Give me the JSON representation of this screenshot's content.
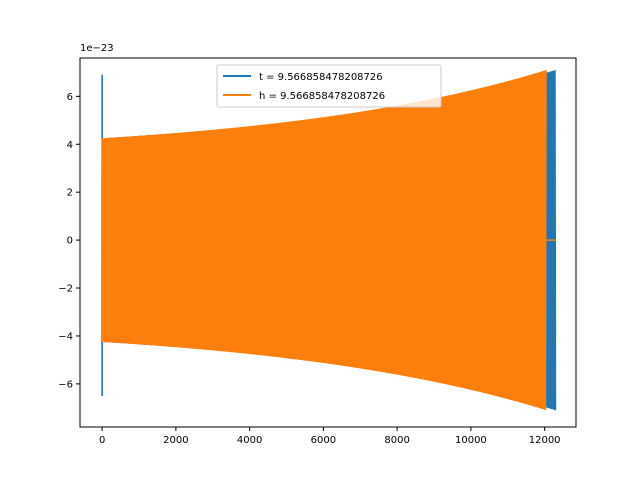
{
  "chart_data": {
    "type": "line",
    "title": "",
    "xlabel": "",
    "ylabel": "",
    "y_offset_text": "1e−23",
    "xlim": [
      -600,
      12850
    ],
    "ylim": [
      -7.8,
      7.6
    ],
    "xticks": [
      0,
      2000,
      4000,
      6000,
      8000,
      10000,
      12000
    ],
    "xtick_labels": [
      "0",
      "2000",
      "4000",
      "6000",
      "8000",
      "10000",
      "12000"
    ],
    "yticks": [
      -6,
      -4,
      -2,
      0,
      2,
      4,
      6
    ],
    "ytick_labels": [
      "−6",
      "−4",
      "−2",
      "0",
      "2",
      "4",
      "6"
    ],
    "grid": false,
    "legend_position": "top-center",
    "series": [
      {
        "name": "t = 9.566858478208726",
        "color": "#1f77b4",
        "spike": {
          "x": 0,
          "ymax": 6.9,
          "ymin": -6.5
        },
        "envelope_start": 4.25,
        "envelope_end": 7.1,
        "signal_end_x": 12300
      },
      {
        "name": "h = 9.566858478208726",
        "color": "#ff7f0e",
        "envelope_start": 4.25,
        "envelope_end": 7.1,
        "signal_end_x": 12050,
        "tail_end_x": 12300,
        "tail_value": 0
      }
    ]
  }
}
